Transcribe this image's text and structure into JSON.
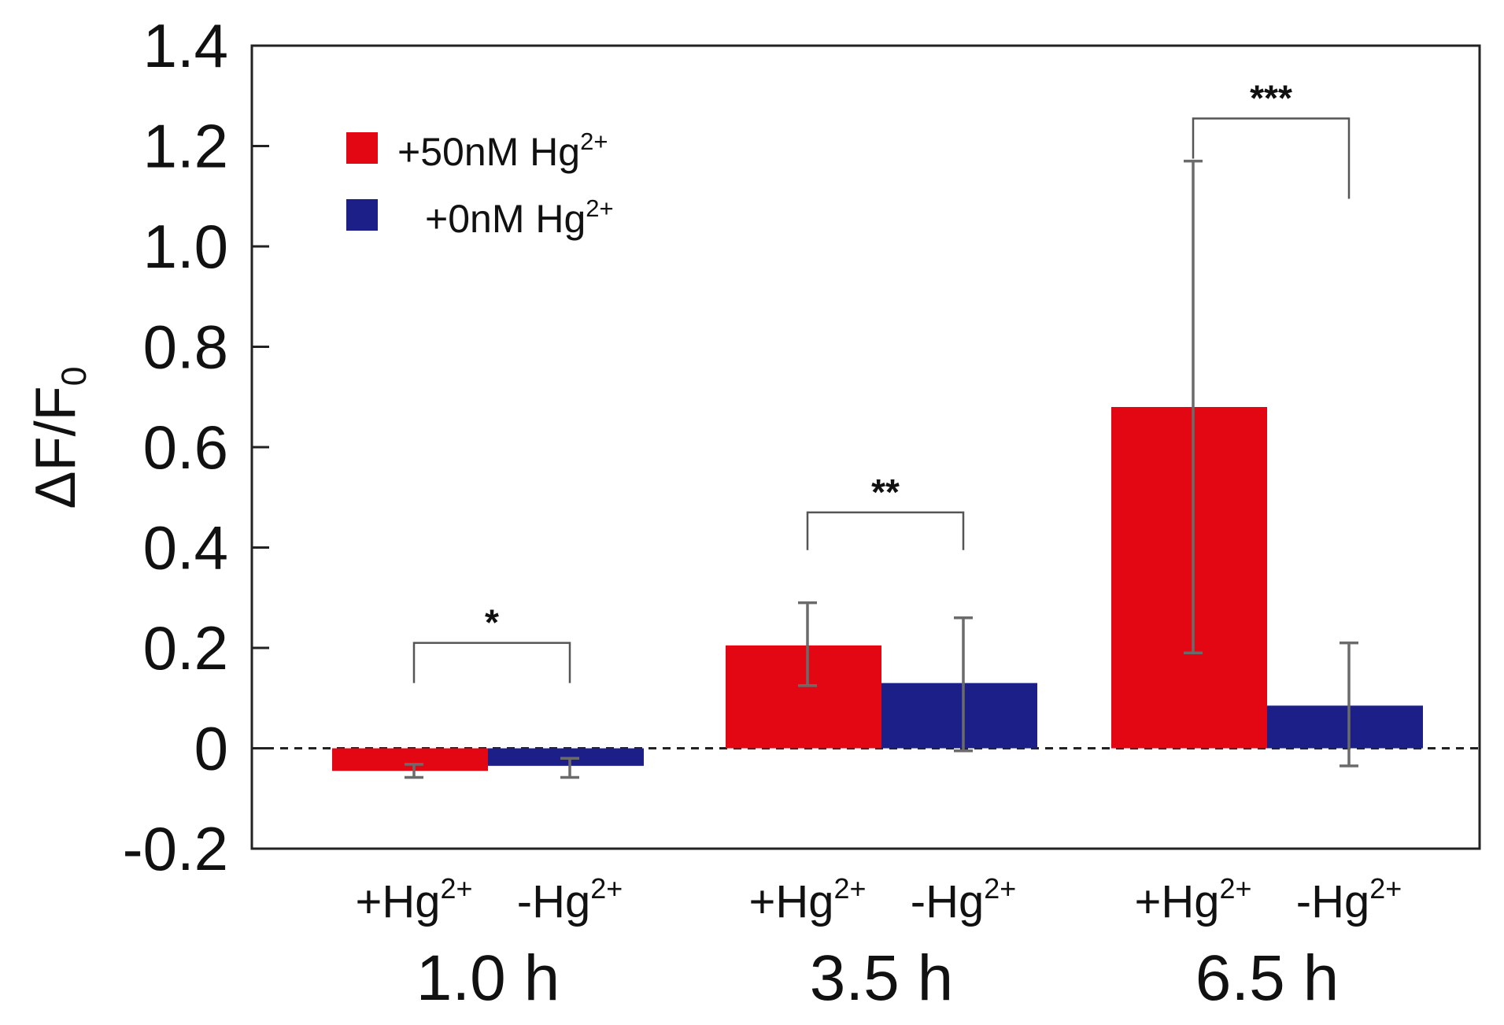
{
  "chart_data": {
    "type": "bar",
    "title": "",
    "xlabel": "",
    "ylabel": "ΔF/F",
    "ylabel_subscript": "0",
    "ylim": [
      -0.2,
      1.4
    ],
    "yticks": [
      {
        "value": 1.4,
        "label": "1.4"
      },
      {
        "value": 1.2,
        "label": "1.2"
      },
      {
        "value": 1.0,
        "label": "1.0"
      },
      {
        "value": 0.8,
        "label": "0.8"
      },
      {
        "value": 0.6,
        "label": "0.6"
      },
      {
        "value": 0.4,
        "label": "0.4"
      },
      {
        "value": 0.2,
        "label": "0.2"
      },
      {
        "value": 0,
        "label": "0"
      },
      {
        "value": -0.2,
        "label": "-0.2"
      }
    ],
    "categories": [
      "1.0 h",
      "3.5 h",
      "6.5 h"
    ],
    "subcategory_labels": {
      "plus_base": "+Hg",
      "minus_base": "-Hg",
      "sup": "2+"
    },
    "series": [
      {
        "name": "+50nM Hg",
        "name_sup": "2+",
        "color": "#e30613",
        "values": [
          -0.045,
          0.205,
          0.68
        ],
        "err_low": [
          -0.058,
          0.125,
          0.19
        ],
        "err_high": [
          -0.032,
          0.29,
          1.17
        ]
      },
      {
        "name": "+0nM Hg",
        "name_sup": "2+",
        "color": "#1c1f87",
        "values": [
          -0.035,
          0.13,
          0.085
        ],
        "err_low": [
          -0.058,
          -0.005,
          -0.035
        ],
        "err_high": [
          -0.02,
          0.26,
          0.21
        ]
      }
    ],
    "significance": [
      {
        "category": "1.0 h",
        "label": "*",
        "bracket_top": 0.21,
        "left_bottom": 0.13,
        "right_bottom": 0.13
      },
      {
        "category": "3.5 h",
        "label": "**",
        "bracket_top": 0.47,
        "left_bottom": 0.395,
        "right_bottom": 0.395
      },
      {
        "category": "6.5 h",
        "label": "***",
        "bracket_top": 1.255,
        "left_bottom": 1.175,
        "right_bottom": 1.095
      }
    ],
    "reference_line": {
      "value": 0,
      "style": "dashed"
    },
    "legend_position": "top-left"
  }
}
